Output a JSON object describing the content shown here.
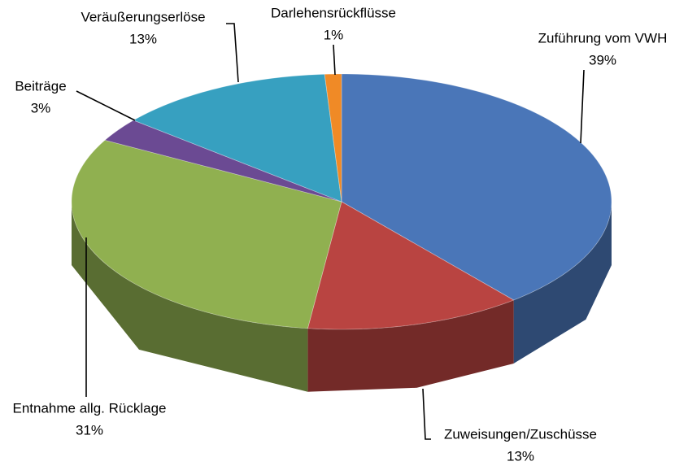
{
  "chart_data": {
    "type": "pie",
    "categories": [
      "Zuführung vom VWH",
      "Zuweisungen/Zuschüsse",
      "Entnahme allg. Rücklage",
      "Beiträge",
      "Veräußerungserlöse",
      "Darlehensrückflüsse"
    ],
    "values": [
      39,
      13,
      31,
      3,
      13,
      1
    ],
    "value_labels": [
      "39%",
      "13%",
      "31%",
      "3%",
      "13%",
      "1%"
    ],
    "colors": [
      "#4a76b8",
      "#b94441",
      "#90b050",
      "#6b4a93",
      "#37a0c0",
      "#f08a26"
    ]
  }
}
